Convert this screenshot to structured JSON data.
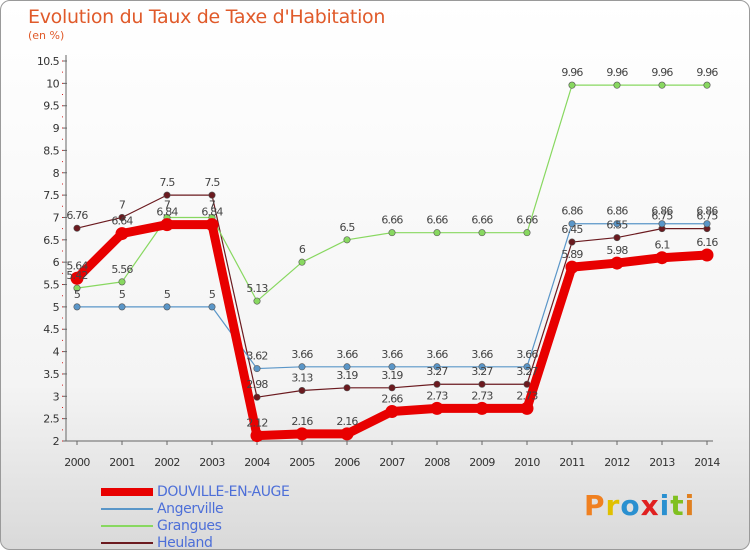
{
  "page": {
    "title": "Evolution du Taux de Taxe d'Habitation",
    "unit": "(en %)",
    "brand": "Proxiti"
  },
  "chart_data": {
    "type": "line",
    "x": [
      "2000",
      "2001",
      "2002",
      "2003",
      "2004",
      "2005",
      "2006",
      "2007",
      "2008",
      "2009",
      "2010",
      "2011",
      "2012",
      "2013",
      "2014"
    ],
    "ylim": [
      2,
      10.5
    ],
    "yticks": [
      "2",
      "2.5",
      "3",
      "3.5",
      "4",
      "4.5",
      "5",
      "5.5",
      "6",
      "6.5",
      "7",
      "7.5",
      "8",
      "8.5",
      "9",
      "9.5",
      "10",
      "10.5"
    ],
    "grid": false,
    "legend_position": "bottom-left",
    "series": [
      {
        "name": "Heuland",
        "color": "#6b1a1f",
        "values": [
          6.76,
          7,
          7.5,
          7.5,
          2.98,
          3.13,
          3.19,
          3.19,
          3.27,
          3.27,
          3.27,
          6.45,
          6.55,
          6.75,
          6.75
        ],
        "labels": [
          "6.76",
          "7",
          "7.5",
          "7.5",
          "2.98",
          "3.13",
          "3.19",
          "3.19",
          "3.27",
          "3.27",
          "3.27",
          "6.45",
          "6.55",
          "6.75",
          "6.75"
        ]
      },
      {
        "name": "Grangues",
        "color": "#88d860",
        "values": [
          5.42,
          5.56,
          7,
          7,
          5.13,
          6,
          6.5,
          6.66,
          6.66,
          6.66,
          6.66,
          9.96,
          9.96,
          9.96,
          9.96
        ],
        "labels": [
          "5.42",
          "5.56",
          "7",
          "7",
          "5.13",
          "6",
          "6.5",
          "6.66",
          "6.66",
          "6.66",
          "6.66",
          "9.96",
          "9.96",
          "9.96",
          "9.96"
        ]
      },
      {
        "name": "Angerville",
        "color": "#5a96c8",
        "values": [
          5,
          5,
          5,
          5,
          3.62,
          3.66,
          3.66,
          3.66,
          3.66,
          3.66,
          3.66,
          6.86,
          6.86,
          6.86,
          6.86
        ],
        "labels": [
          "5",
          "5",
          "5",
          "5",
          "3.62",
          "3.66",
          "3.66",
          "3.66",
          "3.66",
          "3.66",
          "3.66",
          "6.86",
          "6.86",
          "6.86",
          "6.86"
        ]
      },
      {
        "name": "DOUVILLE-EN-AUGE",
        "color": "#e80000",
        "values": [
          5.64,
          6.64,
          6.84,
          6.84,
          2.12,
          2.16,
          2.16,
          2.66,
          2.73,
          2.73,
          2.73,
          5.89,
          5.98,
          6.1,
          6.16
        ],
        "labels": [
          "5.64",
          "6.64",
          "6.84",
          "6.84",
          "2.12",
          "2.16",
          "2.16",
          "2.66",
          "2.73",
          "2.73",
          "2.73",
          "5.89",
          "5.98",
          "6.1",
          "6.16"
        ]
      }
    ]
  }
}
